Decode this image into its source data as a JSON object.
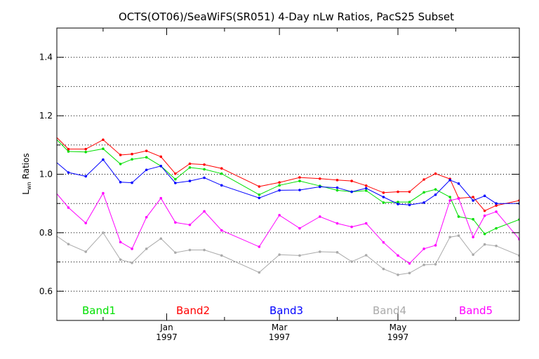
{
  "chart_data": {
    "type": "line",
    "title": "OCTS(OT06)/SeaWiFS(SR051) 4-Day nLw Ratios, PacS25 Subset",
    "ylabel": "L",
    "ylabel_sub": "wn",
    "ylabel_suffix": " Ratios",
    "xlim": [
      0,
      160
    ],
    "ylim": [
      0.5,
      1.5
    ],
    "yticks": [
      0.6,
      0.8,
      1.0,
      1.2,
      1.4
    ],
    "ytick_labels": [
      "0.6",
      "0.8",
      "1.0",
      "1.2",
      "1.4"
    ],
    "yminor": [
      0.7,
      0.9,
      1.1,
      1.3
    ],
    "xticks": [
      {
        "x": 38,
        "month": "Jan",
        "year": "1997"
      },
      {
        "x": 77,
        "month": "Mar",
        "year": "1997"
      },
      {
        "x": 118,
        "month": "May",
        "year": "1997"
      }
    ],
    "xminor": [
      16,
      58,
      97,
      138
    ],
    "grid": true,
    "x": [
      -1,
      4,
      10,
      16,
      22,
      26,
      31,
      36,
      41,
      46,
      51,
      57,
      70,
      77,
      84,
      91,
      97,
      102,
      107,
      113,
      118,
      122,
      127,
      131,
      136,
      139,
      144,
      148,
      152,
      160
    ],
    "series": [
      {
        "name": "Band1",
        "color": "#00e000",
        "values": [
          1.128,
          1.078,
          1.076,
          1.087,
          1.035,
          1.051,
          1.058,
          1.028,
          0.983,
          1.023,
          1.017,
          1.002,
          0.93,
          0.962,
          0.977,
          0.96,
          0.945,
          0.94,
          0.944,
          0.903,
          0.905,
          0.905,
          0.938,
          0.948,
          0.922,
          0.855,
          0.846,
          0.796,
          0.815,
          0.845
        ]
      },
      {
        "name": "Band2",
        "color": "#ff0000",
        "values": [
          1.135,
          1.086,
          1.086,
          1.118,
          1.066,
          1.069,
          1.08,
          1.06,
          1.002,
          1.036,
          1.033,
          1.02,
          0.958,
          0.972,
          0.989,
          0.985,
          0.98,
          0.977,
          0.961,
          0.937,
          0.94,
          0.94,
          0.982,
          1.002,
          0.984,
          0.918,
          0.922,
          0.875,
          0.893,
          0.91
        ]
      },
      {
        "name": "Band3",
        "color": "#0000ff",
        "values": [
          1.048,
          1.006,
          0.993,
          1.05,
          0.973,
          0.971,
          1.015,
          1.028,
          0.97,
          0.977,
          0.988,
          0.962,
          0.919,
          0.945,
          0.946,
          0.957,
          0.954,
          0.94,
          0.952,
          0.922,
          0.898,
          0.895,
          0.903,
          0.93,
          0.98,
          0.968,
          0.91,
          0.926,
          0.9,
          0.9
        ]
      },
      {
        "name": "Band4",
        "color": "#aaaaaa",
        "values": [
          0.795,
          0.761,
          0.735,
          0.8,
          0.708,
          0.697,
          0.745,
          0.78,
          0.732,
          0.741,
          0.741,
          0.722,
          0.664,
          0.725,
          0.722,
          0.735,
          0.733,
          0.701,
          0.723,
          0.676,
          0.656,
          0.662,
          0.69,
          0.692,
          0.785,
          0.79,
          0.725,
          0.76,
          0.755,
          0.722
        ]
      },
      {
        "name": "Band5",
        "color": "#ff00ff",
        "values": [
          0.945,
          0.886,
          0.833,
          0.935,
          0.768,
          0.745,
          0.853,
          0.918,
          0.835,
          0.827,
          0.873,
          0.808,
          0.752,
          0.86,
          0.815,
          0.855,
          0.832,
          0.82,
          0.832,
          0.767,
          0.722,
          0.695,
          0.745,
          0.757,
          0.91,
          0.917,
          0.785,
          0.858,
          0.872,
          0.778
        ]
      }
    ]
  }
}
